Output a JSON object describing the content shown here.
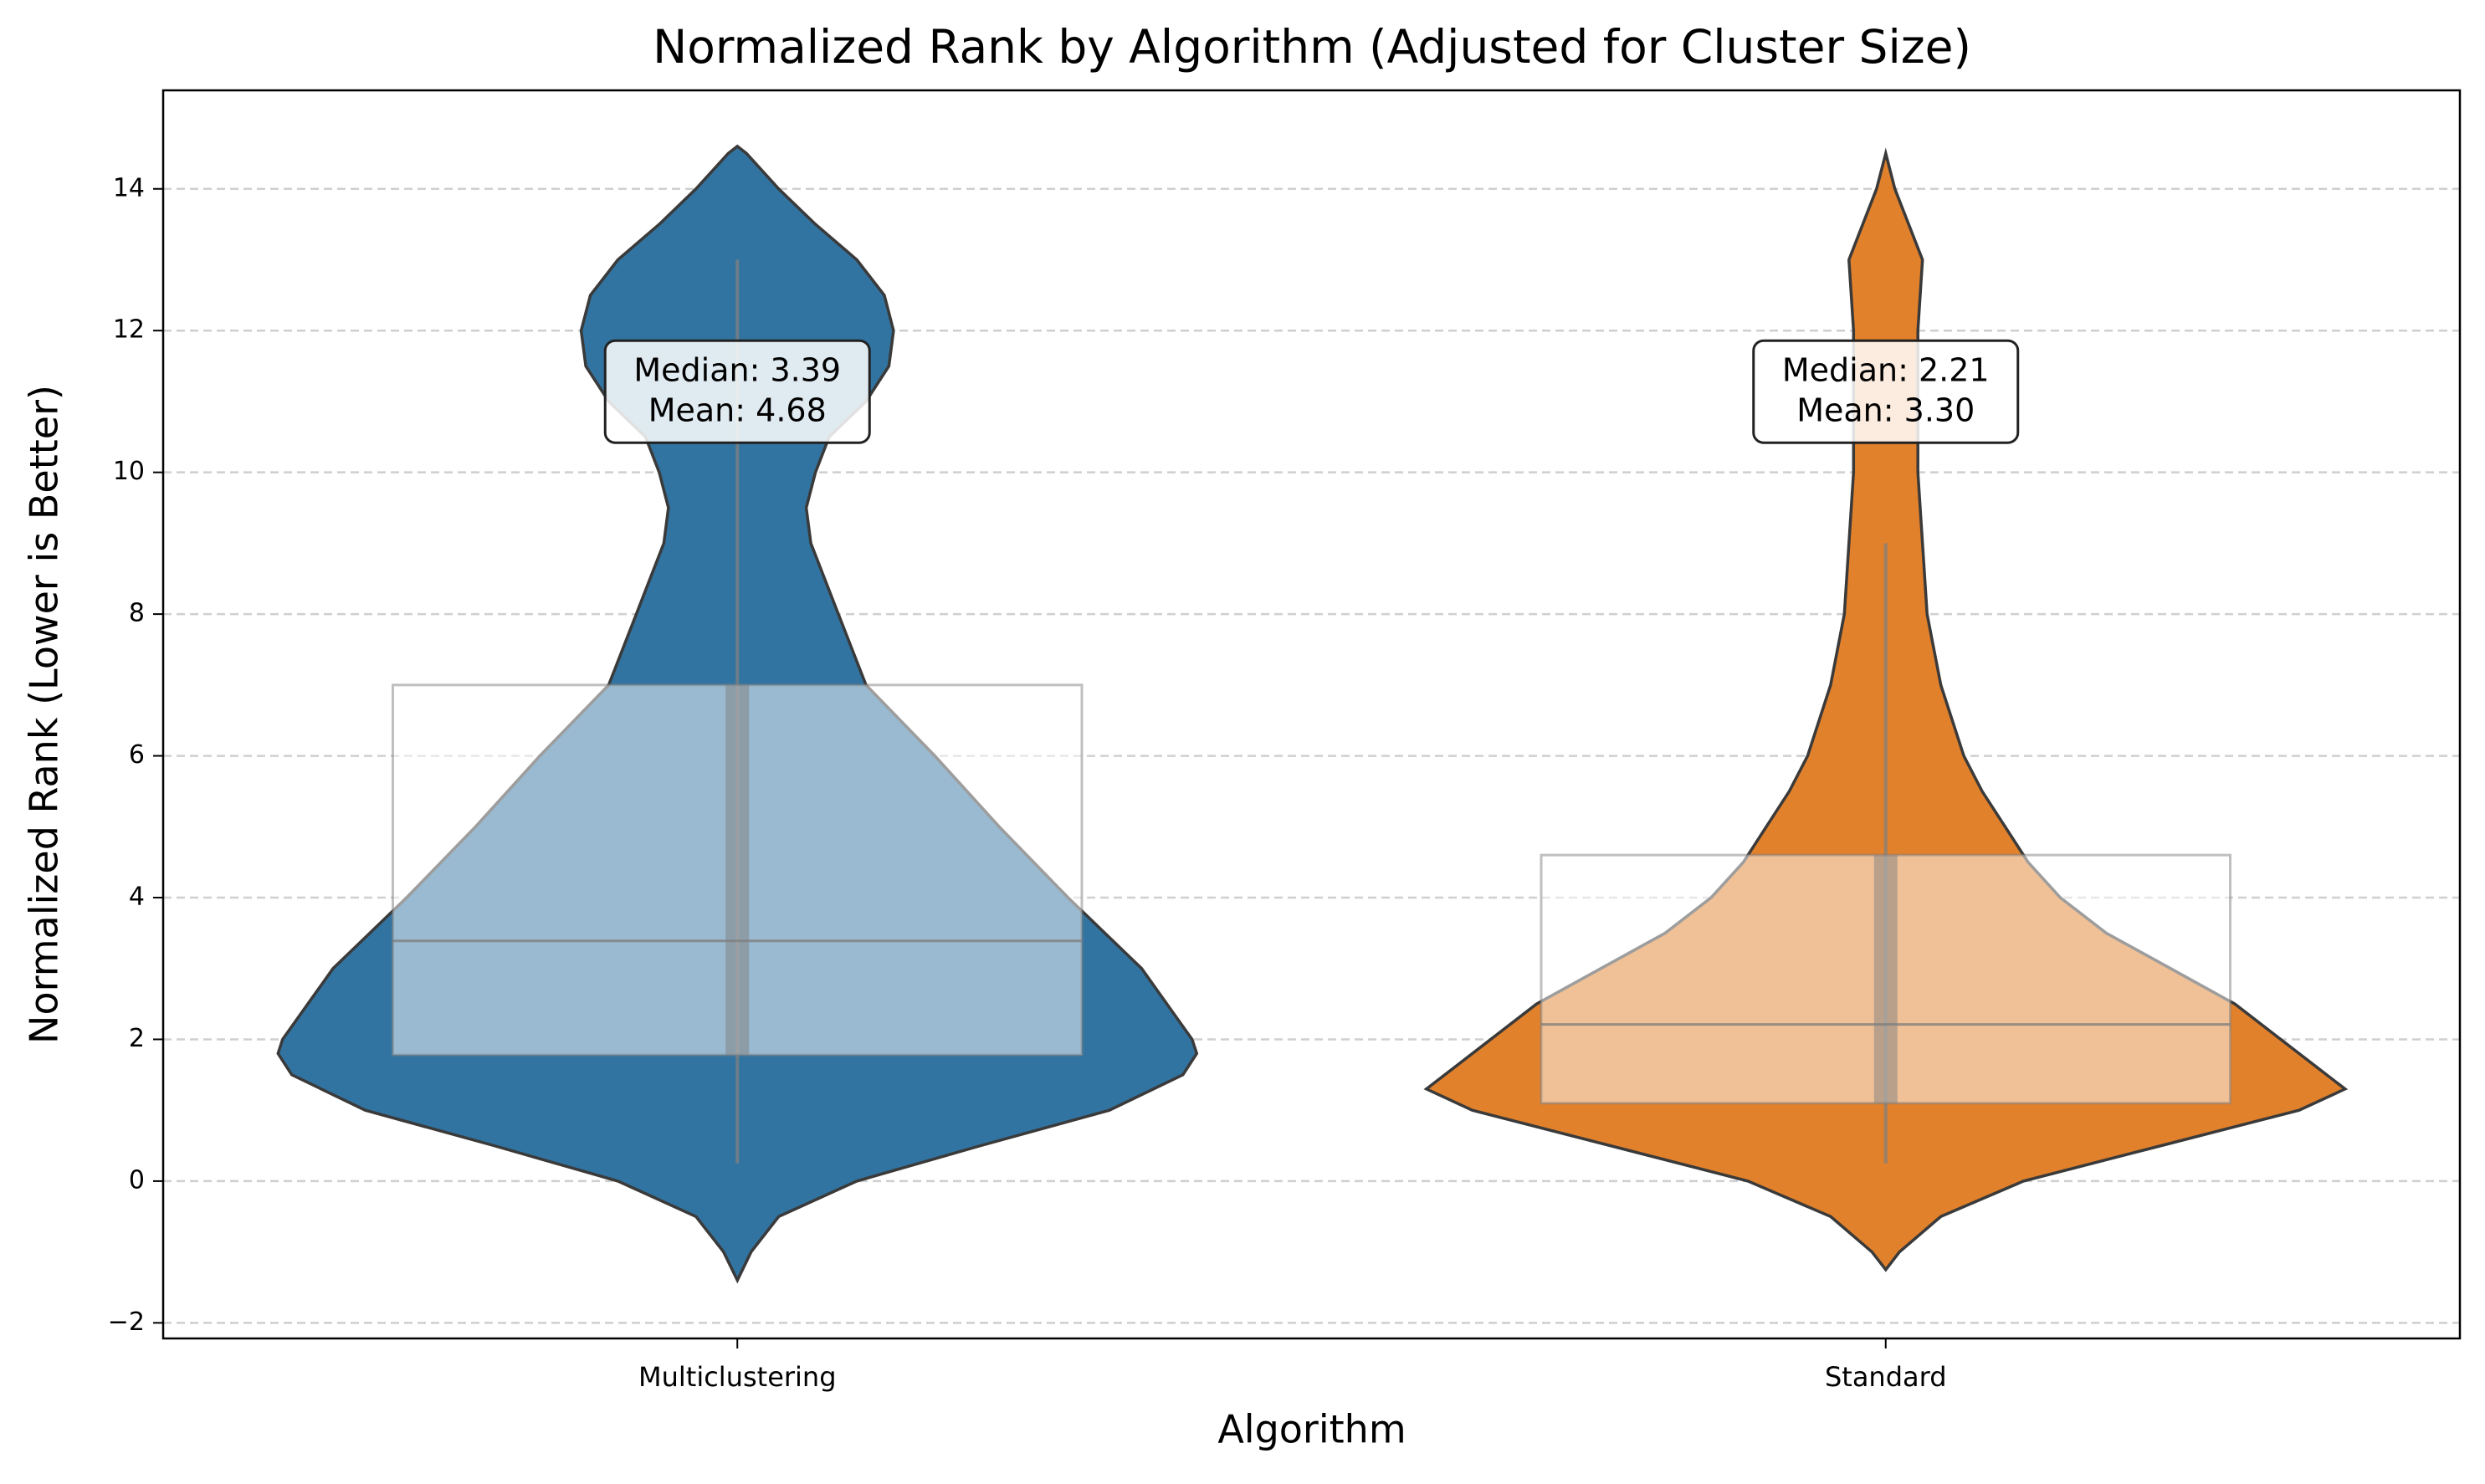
{
  "chart_data": {
    "type": "violin",
    "title": "Normalized Rank by Algorithm (Adjusted for Cluster Size)",
    "x_label": "Algorithm",
    "y_label": "Normalized Rank (Lower is Better)",
    "categories": [
      "Multiclustering",
      "Standard"
    ],
    "ylim": [
      -2.22,
      15.39
    ],
    "yticks": [
      {
        "value": -2,
        "label": "−2"
      },
      0,
      2,
      4,
      6,
      8,
      10,
      12,
      14
    ],
    "grid": true,
    "series": [
      {
        "name": "Multiclustering",
        "color": "#3274a1",
        "violin": {
          "y": [
            -1.4,
            -1,
            -0.5,
            0,
            0.5,
            1,
            1.5,
            1.8,
            2,
            3,
            4,
            5,
            6,
            7,
            8,
            9,
            9.5,
            10,
            10.5,
            11,
            11.5,
            12,
            12.5,
            13,
            13.5,
            14,
            14.5,
            14.6
          ],
          "density": [
            0,
            0.03,
            0.09,
            0.26,
            0.53,
            0.81,
            0.97,
            1,
            0.99,
            0.88,
            0.72,
            0.57,
            0.43,
            0.28,
            0.22,
            0.16,
            0.15,
            0.17,
            0.2,
            0.28,
            0.33,
            0.34,
            0.32,
            0.26,
            0.17,
            0.09,
            0.02,
            0
          ]
        },
        "box": {
          "whisker_low": 0.25,
          "q1": 1.78,
          "median": 3.39,
          "q3": 7.0,
          "whisker_high": 13.0
        },
        "annotation": [
          "Median: 3.39",
          "Mean: 4.68"
        ]
      },
      {
        "name": "Standard",
        "color": "#e1812c",
        "violin": {
          "y": [
            -1.25,
            -1,
            -0.5,
            0,
            0.5,
            1,
            1.3,
            2,
            2.5,
            3,
            3.5,
            4,
            4.5,
            5,
            5.5,
            6,
            7,
            8,
            9,
            10,
            11,
            12,
            13,
            13.5,
            14,
            14.5
          ],
          "density": [
            0,
            0.03,
            0.12,
            0.3,
            0.6,
            0.9,
            1,
            0.86,
            0.76,
            0.62,
            0.48,
            0.38,
            0.31,
            0.26,
            0.21,
            0.17,
            0.12,
            0.09,
            0.08,
            0.07,
            0.07,
            0.07,
            0.08,
            0.05,
            0.02,
            0
          ]
        },
        "box": {
          "whisker_low": 0.25,
          "q1": 1.1,
          "median": 2.21,
          "q3": 4.6,
          "whisker_high": 9.0
        },
        "annotation": [
          "Median: 2.21",
          "Mean: 3.30"
        ]
      }
    ]
  }
}
